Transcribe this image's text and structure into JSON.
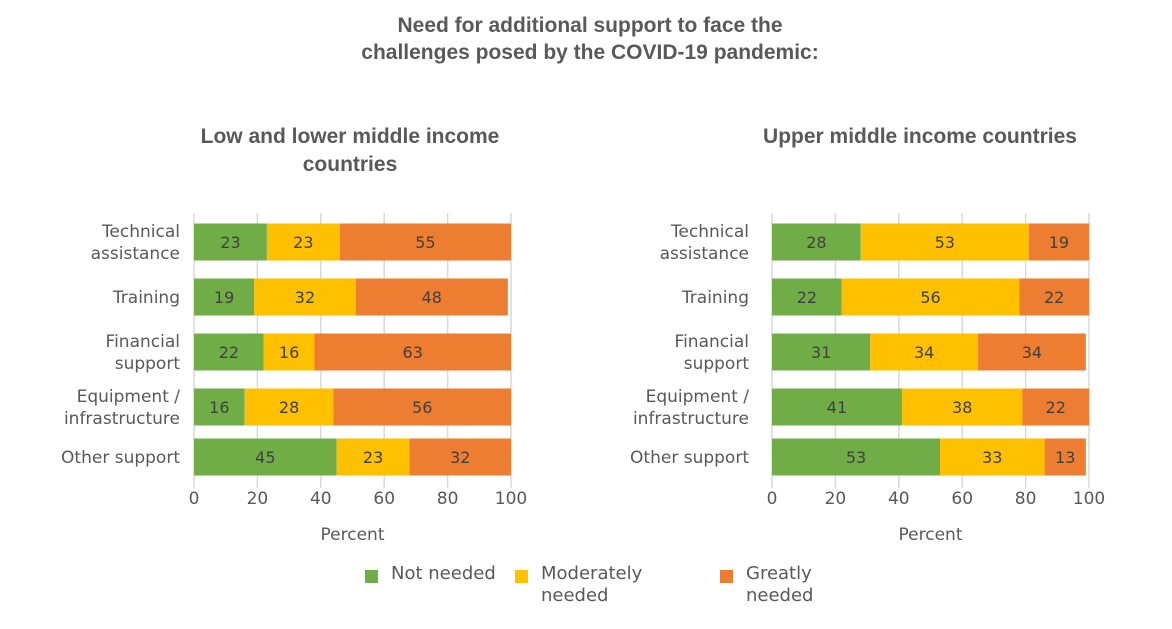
{
  "main_title": "Need for additional support to face the challenges posed by the COVID-19 pandemic:",
  "legend": [
    {
      "label": "Not needed",
      "color": "#70AD47"
    },
    {
      "label": "Moderately needed",
      "color": "#FFC000"
    },
    {
      "label": "Greatly needed",
      "color": "#ED7D31"
    }
  ],
  "chart_data": [
    {
      "type": "bar",
      "orientation": "horizontal",
      "stacked": true,
      "title": "Low and lower middle income countries",
      "xlabel": "Percent",
      "ylabel": "",
      "xlim": [
        0,
        100
      ],
      "xticks": [
        "0",
        "20",
        "40",
        "60",
        "80",
        "100"
      ],
      "grid": true,
      "legend_position": "bottom",
      "categories": [
        "Technical assistance",
        "Training",
        "Financial support",
        "Equipment / infrastructure",
        "Other support"
      ],
      "category_lines": [
        [
          "Technical",
          "assistance"
        ],
        [
          "Training"
        ],
        [
          "Financial",
          "support"
        ],
        [
          "Equipment /",
          "infrastructure"
        ],
        [
          "Other support"
        ]
      ],
      "series": [
        {
          "name": "Not needed",
          "values": [
            23,
            19,
            22,
            16,
            45
          ]
        },
        {
          "name": "Moderately needed",
          "values": [
            23,
            32,
            16,
            28,
            23
          ]
        },
        {
          "name": "Greatly needed",
          "values": [
            55,
            48,
            63,
            56,
            32
          ]
        }
      ]
    },
    {
      "type": "bar",
      "orientation": "horizontal",
      "stacked": true,
      "title": "Upper middle income countries",
      "xlabel": "Percent",
      "ylabel": "",
      "xlim": [
        0,
        100
      ],
      "xticks": [
        "0",
        "20",
        "40",
        "60",
        "80",
        "100"
      ],
      "grid": true,
      "legend_position": "bottom",
      "categories": [
        "Technical assistance",
        "Training",
        "Financial support",
        "Equipment / infrastructure",
        "Other support"
      ],
      "category_lines": [
        [
          "Technical",
          "assistance"
        ],
        [
          "Training"
        ],
        [
          "Financial",
          "support"
        ],
        [
          "Equipment /",
          "infrastructure"
        ],
        [
          "Other support"
        ]
      ],
      "series": [
        {
          "name": "Not needed",
          "values": [
            28,
            22,
            31,
            41,
            53
          ]
        },
        {
          "name": "Moderately needed",
          "values": [
            53,
            56,
            34,
            38,
            33
          ]
        },
        {
          "name": "Greatly needed",
          "values": [
            19,
            22,
            34,
            22,
            13
          ]
        }
      ]
    }
  ]
}
